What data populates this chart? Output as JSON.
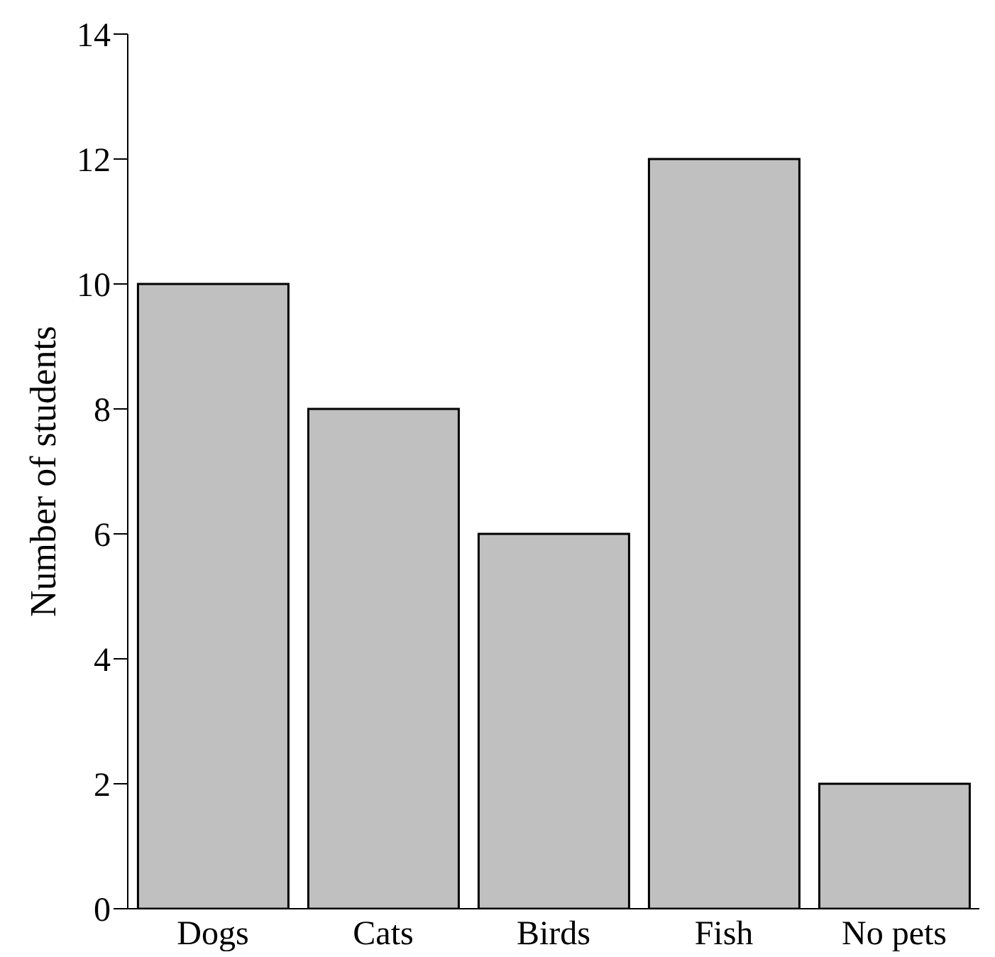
{
  "chart_data": {
    "type": "bar",
    "ylabel": "Number of students",
    "categories": [
      "Dogs",
      "Cats",
      "Birds",
      "Fish",
      "No pets"
    ],
    "values": [
      10,
      8,
      6,
      12,
      2
    ],
    "color": "#c0c0c0",
    "ylim": [
      0,
      14
    ],
    "yticks": [
      0,
      2,
      4,
      6,
      8,
      10,
      12,
      14
    ],
    "grid": false,
    "legend": false
  }
}
